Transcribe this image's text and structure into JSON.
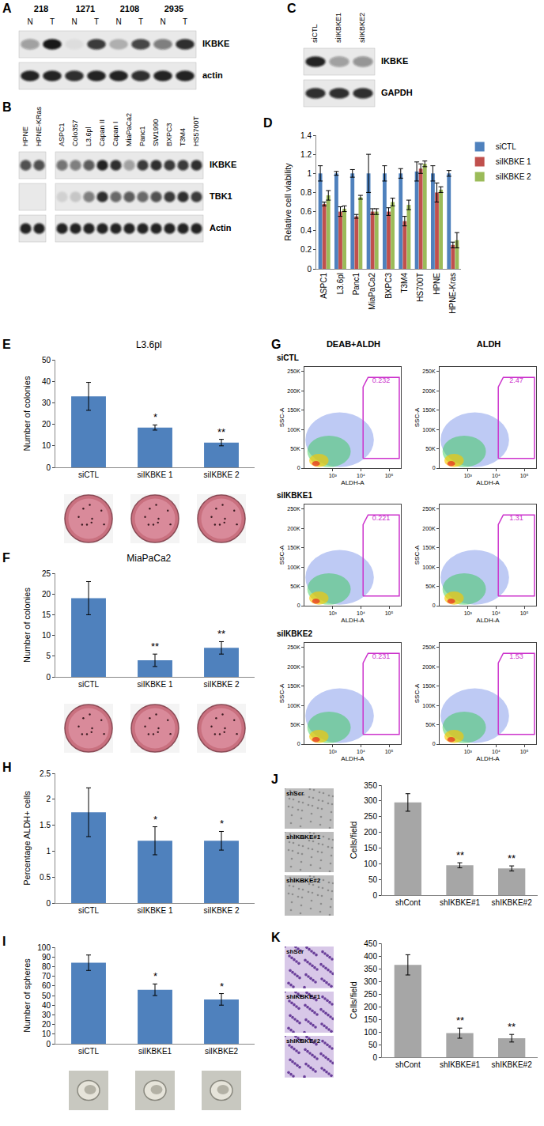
{
  "chart_data": [
    {
      "type": "blot",
      "panel": "A",
      "groups": [
        "218",
        "1271",
        "2108",
        "2935"
      ],
      "row_labels": [
        "IKBKE",
        "actin"
      ],
      "parts": [
        {
          "lanes": [
            "N",
            "T",
            "N",
            "T",
            "N",
            "T",
            "N",
            "T"
          ],
          "intensity": [
            [
              0.35,
              0.95,
              0.05,
              0.8,
              0.25,
              0.75,
              0.5,
              0.85
            ],
            [
              0.9,
              0.9,
              0.85,
              0.9,
              0.9,
              0.85,
              0.9,
              0.9
            ]
          ]
        }
      ]
    },
    {
      "type": "blot",
      "panel": "B",
      "row_labels": [
        "IKBKE",
        "TBK1",
        "Actin"
      ],
      "parts": [
        {
          "lanes": [
            "HPNE",
            "HPNE-KRas"
          ],
          "intensity": [
            [
              0.7,
              0.7
            ],
            [
              0,
              0
            ],
            [
              0.9,
              0.9
            ]
          ]
        },
        {
          "lanes": [
            "ASPC1",
            "Colo357",
            "L3.6pl",
            "Capan II",
            "Capan I",
            "MiaPaCa2",
            "Panc1",
            "SW1990",
            "BXPC3",
            "T3M4",
            "HS5700T"
          ],
          "intensity": [
            [
              0.55,
              0.5,
              0.65,
              0.9,
              0.85,
              0.35,
              0.8,
              0.85,
              0.8,
              0.8,
              0.85
            ],
            [
              0.1,
              0.15,
              0.5,
              0.85,
              0.6,
              0.65,
              0.6,
              0.7,
              0.8,
              0.85,
              0.8
            ],
            [
              0.9,
              0.9,
              0.9,
              0.9,
              0.9,
              0.9,
              0.9,
              0.9,
              0.9,
              0.9,
              0.9
            ]
          ]
        }
      ]
    },
    {
      "type": "blot",
      "panel": "C",
      "row_labels": [
        "IKBKE",
        "GAPDH"
      ],
      "parts": [
        {
          "lanes": [
            "siCTL",
            "siIKBKE1",
            "siIKBKE2"
          ],
          "intensity": [
            [
              0.9,
              0.35,
              0.4
            ],
            [
              0.85,
              0.85,
              0.85
            ]
          ]
        }
      ]
    },
    {
      "type": "bar",
      "panel": "D",
      "y_label": "Relative cell viability",
      "categories": [
        "ASPC1",
        "L3.6pl",
        "Panc1",
        "MiaPaCa2",
        "BXPC3",
        "T3M4",
        "HS700T",
        "HPNE",
        "HPNE-Kras"
      ],
      "series": [
        {
          "name": "siCTL",
          "color": "#4f81bd",
          "values": [
            1,
            1,
            1,
            1,
            1,
            1,
            1.02,
            1,
            1
          ],
          "errors": [
            0.08,
            0.02,
            0.04,
            0.2,
            0.08,
            0.05,
            0.1,
            0.08,
            0.03
          ]
        },
        {
          "name": "siIKBKE 1",
          "color": "#c0504d",
          "values": [
            0.68,
            0.6,
            0.55,
            0.6,
            0.6,
            0.5,
            1.05,
            0.8,
            0.25
          ],
          "errors": [
            0.02,
            0.05,
            0.02,
            0.03,
            0.04,
            0.05,
            0.05,
            0.1,
            0.03
          ]
        },
        {
          "name": "siIKBKE 2",
          "color": "#9bbb59",
          "values": [
            0.77,
            0.63,
            0.75,
            0.6,
            0.7,
            0.67,
            1.1,
            0.83,
            0.3
          ],
          "errors": [
            0.05,
            0.03,
            0.02,
            0.03,
            0.04,
            0.05,
            0.03,
            0.03,
            0.08
          ]
        }
      ],
      "ylim": [
        0,
        1.4
      ],
      "yticks": [
        0,
        0.2,
        0.4,
        0.6,
        0.8,
        1,
        1.2,
        1.4
      ],
      "legend": "right"
    },
    {
      "type": "bar",
      "panel": "E",
      "title": "L3.6pl",
      "y_label": "Number of colonies",
      "categories": [
        "siCTL",
        "siIKBKE 1",
        "siIKBKE 2"
      ],
      "values": [
        33,
        18.5,
        11.5
      ],
      "errors": [
        6.5,
        1.2,
        1.5
      ],
      "significance": [
        null,
        "*",
        "**"
      ],
      "color": "#4f81bd",
      "ylim": [
        0,
        50
      ],
      "yticks": [
        0,
        10,
        20,
        30,
        40,
        50
      ]
    },
    {
      "type": "bar",
      "panel": "F",
      "title": "MiaPaCa2",
      "y_label": "Number of colonies",
      "categories": [
        "siCTL",
        "siIKBKE 1",
        "siIKBKE 2"
      ],
      "values": [
        19,
        4,
        7
      ],
      "errors": [
        4,
        1.5,
        1.5
      ],
      "significance": [
        null,
        "**",
        "**"
      ],
      "color": "#4f81bd",
      "ylim": [
        0,
        25
      ],
      "yticks": [
        0,
        5,
        10,
        15,
        20,
        25
      ]
    },
    {
      "type": "flow",
      "panel": "G",
      "columns": [
        "DEAB+ALDH",
        "ALDH"
      ],
      "rows": [
        "siCTL",
        "siIKBKE1",
        "siIKBKE2"
      ],
      "gate_values": [
        [
          0.232,
          2.47
        ],
        [
          0.221,
          1.31
        ],
        [
          0.231,
          1.53
        ]
      ],
      "x_label": "ALDH-A",
      "y_label": "SSC-A",
      "log": "x",
      "xlim": [
        100,
        262144
      ],
      "ylim": [
        0,
        262144
      ],
      "xticks": [
        {
          "value": 1000,
          "label": "10³"
        },
        {
          "value": 10000,
          "label": "10⁴"
        },
        {
          "value": 100000,
          "label": "10⁵"
        }
      ],
      "yticks": [
        0,
        {
          "value": 50000,
          "label": "50K"
        },
        {
          "value": 100000,
          "label": "100K"
        },
        {
          "value": 150000,
          "label": "150K"
        },
        {
          "value": 200000,
          "label": "200K"
        },
        {
          "value": 250000,
          "label": "250K"
        }
      ],
      "gate": {
        "x": [
          12000,
          12000,
          18000,
          230000,
          230000
        ],
        "y": [
          25000,
          210000,
          235000,
          235000,
          25000
        ]
      },
      "color": "#cc33cc"
    },
    {
      "type": "bar",
      "panel": "H",
      "y_label": "Percentage ALDH+ cells",
      "categories": [
        "siCTL",
        "siIKBKE 1",
        "siIKBKE 2"
      ],
      "values": [
        1.75,
        1.2,
        1.2
      ],
      "errors": [
        0.47,
        0.27,
        0.18
      ],
      "significance": [
        null,
        "*",
        "*"
      ],
      "color": "#4f81bd",
      "ylim": [
        0,
        2.5
      ],
      "yticks": [
        0,
        0.5,
        1,
        1.5,
        2,
        2.5
      ]
    },
    {
      "type": "bar",
      "panel": "I",
      "y_label": "Number of spheres",
      "categories": [
        "siCTL",
        "siIKBKE1",
        "siIKBKE2"
      ],
      "values": [
        84,
        56,
        46
      ],
      "errors": [
        8,
        6,
        6
      ],
      "significance": [
        null,
        "*",
        "*"
      ],
      "color": "#4f81bd",
      "ylim": [
        0,
        100
      ],
      "yticks": [
        0,
        10,
        20,
        30,
        40,
        50,
        60,
        70,
        80,
        90,
        100
      ]
    },
    {
      "type": "bar",
      "panel": "J",
      "y_label": "Cells/field",
      "image_labels": [
        "shScr",
        "shIKBKE#1",
        "shIKBKE#2"
      ],
      "categories": [
        "shCont",
        "shIKBKE#1",
        "shIKBKE#2"
      ],
      "values": [
        295,
        95,
        85
      ],
      "errors": [
        28,
        8,
        8
      ],
      "significance": [
        null,
        "**",
        "**"
      ],
      "color": "#a6a6a6",
      "ylim": [
        0,
        350
      ],
      "yticks": [
        0,
        50,
        100,
        150,
        200,
        250,
        300,
        350
      ]
    },
    {
      "type": "bar",
      "panel": "K",
      "y_label": "Cells/field",
      "image_labels": [
        "shScr",
        "shIKBKE#1",
        "shIKBKE#2"
      ],
      "categories": [
        "shCont",
        "shIKBKE#1",
        "shIKBKE#2"
      ],
      "values": [
        365,
        95,
        75
      ],
      "errors": [
        40,
        20,
        15
      ],
      "significance": [
        null,
        "**",
        "**"
      ],
      "color": "#a6a6a6",
      "ylim": [
        0,
        450
      ],
      "yticks": [
        0,
        50,
        100,
        150,
        200,
        250,
        300,
        350,
        400,
        450
      ]
    }
  ]
}
